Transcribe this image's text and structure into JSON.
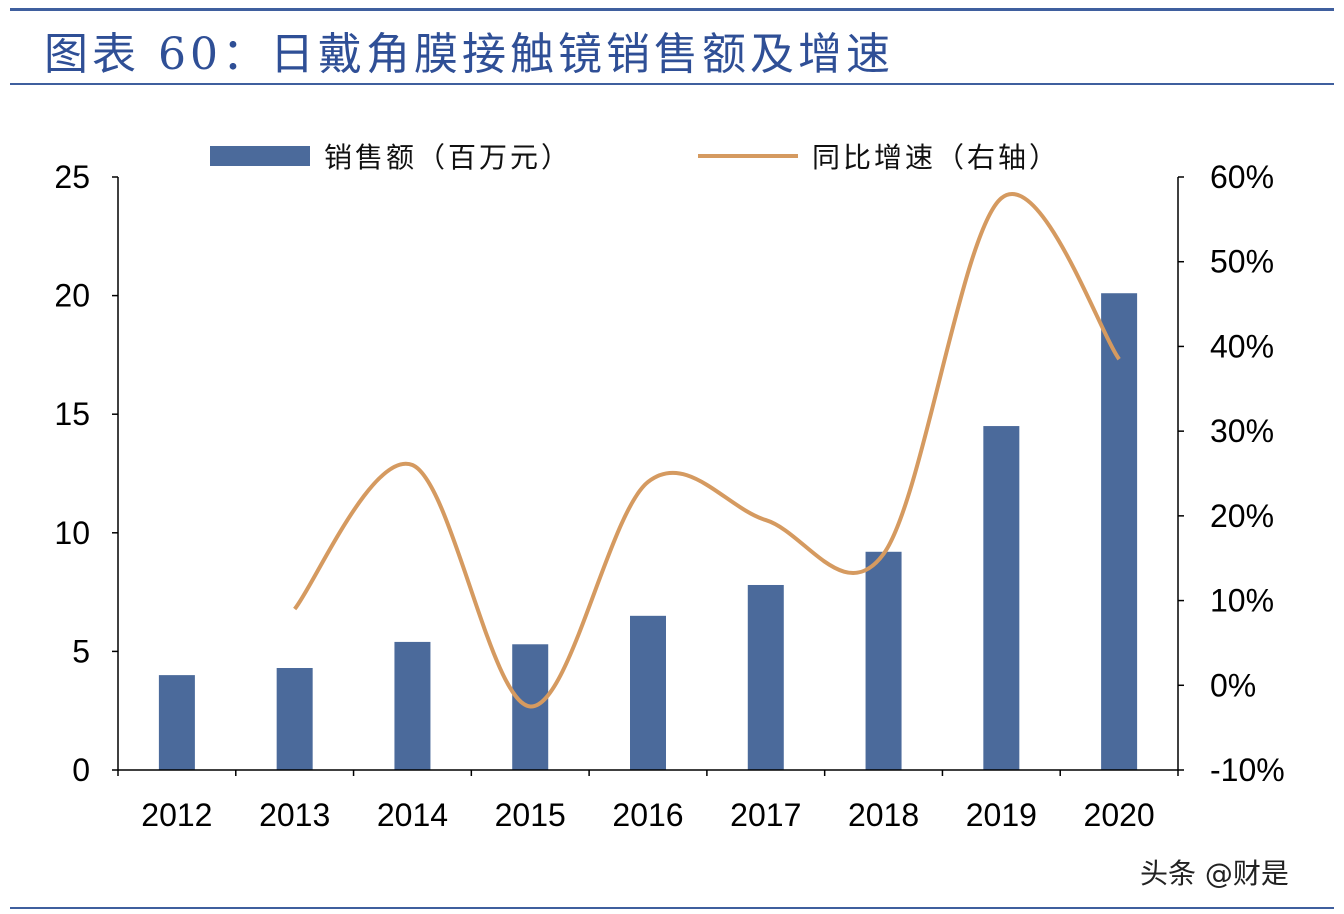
{
  "header": {
    "title": "图表 60：日戴角膜接触镜销售额及增速"
  },
  "watermark": "头条 @财是",
  "colors": {
    "accent": "#2f4f96",
    "bar": "#4b6a9b",
    "line": "#d59a60"
  },
  "chart_data": {
    "type": "bar",
    "title": "",
    "xlabel": "",
    "ylabel": "",
    "categories": [
      "2012",
      "2013",
      "2014",
      "2015",
      "2016",
      "2017",
      "2018",
      "2019",
      "2020"
    ],
    "legend_placement": "top",
    "grid": false,
    "y_left": {
      "ylim": [
        0,
        25
      ],
      "ticks": [
        0,
        5,
        10,
        15,
        20,
        25
      ],
      "tick_labels": [
        "0",
        "5",
        "10",
        "15",
        "20",
        "25"
      ]
    },
    "y_right": {
      "ylim": [
        -0.1,
        0.6
      ],
      "ticks": [
        -0.1,
        0,
        0.1,
        0.2,
        0.3,
        0.4,
        0.5,
        0.6
      ],
      "tick_labels": [
        "-10%",
        "0%",
        "10%",
        "20%",
        "30%",
        "40%",
        "50%",
        "60%"
      ]
    },
    "series": [
      {
        "name": "销售额（百万元）",
        "type": "bar",
        "axis": "left",
        "values": [
          4.0,
          4.3,
          5.4,
          5.3,
          6.5,
          7.8,
          9.2,
          14.5,
          20.1
        ]
      },
      {
        "name": "同比增速（右轴）",
        "type": "line",
        "axis": "right",
        "values": [
          null,
          0.09,
          0.26,
          -0.025,
          0.24,
          0.195,
          0.155,
          0.575,
          0.385
        ]
      }
    ]
  }
}
